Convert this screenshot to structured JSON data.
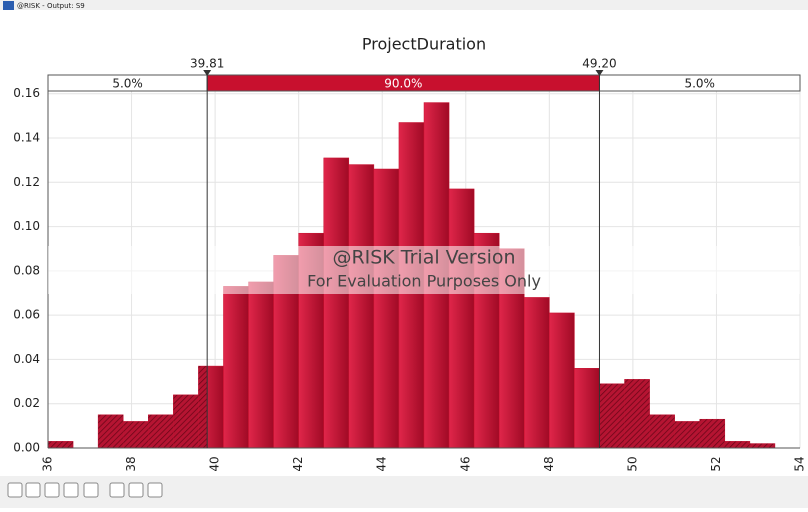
{
  "window_title": "@RISK - Output: S9",
  "chart_data": {
    "type": "histogram",
    "title": "ProjectDuration",
    "bins": [
      36.0,
      36.6,
      37.2,
      37.8,
      38.4,
      39.0,
      39.6,
      40.2,
      40.8,
      41.4,
      42.0,
      42.6,
      43.2,
      43.8,
      44.4,
      45.0,
      45.6,
      46.2,
      46.8,
      47.4,
      48.0,
      48.6,
      49.2,
      49.8,
      50.4,
      51.0,
      51.6,
      52.2,
      52.8,
      53.4
    ],
    "counts": [
      0.003,
      0,
      0.015,
      0.012,
      0.015,
      0.024,
      0.037,
      0.073,
      0.075,
      0.087,
      0.097,
      0.131,
      0.128,
      0.126,
      0.147,
      0.156,
      0.117,
      0.097,
      0.09,
      0.068,
      0.061,
      0.036,
      0.029,
      0.031,
      0.015,
      0.012,
      0.013,
      0.003,
      0.002
    ],
    "color": "#c8102e",
    "xlim": [
      36,
      54
    ],
    "xticks": [
      36,
      38,
      40,
      42,
      44,
      46,
      48,
      50,
      52,
      54
    ],
    "ylim": [
      0,
      0.168
    ],
    "yticks": [
      {
        "value": 0,
        "label": "0.00"
      },
      0.02,
      0.04,
      0.06,
      0.08,
      {
        "value": 0.1,
        "label": "0.10"
      },
      0.12,
      0.14,
      0.16
    ],
    "grid": true,
    "delimiters": [
      39.81,
      {
        "value": 49.2,
        "label": "49.20"
      }
    ],
    "delimiter_bands": {
      "values": [
        5,
        90,
        5
      ],
      "value_labels": [
        "5.0%",
        "90.0%",
        "5.0%"
      ]
    },
    "watermark": [
      "@RISK Trial Version",
      "For Evaluation Purposes Only"
    ]
  }
}
